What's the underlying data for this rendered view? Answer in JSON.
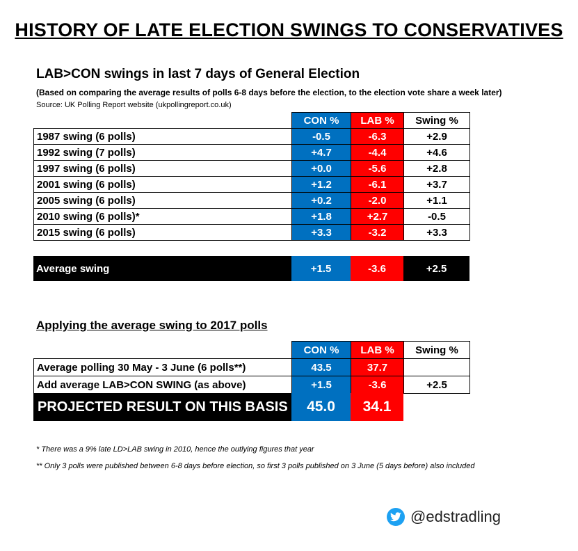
{
  "title": "HISTORY OF LATE ELECTION SWINGS TO CONSERVATIVES",
  "section1": {
    "heading": "LAB>CON swings in last 7 days of General Election",
    "note": "(Based on comparing the average results of polls 6-8 days before the election, to the election vote share a week later)",
    "source": "Source: UK Polling Report website (ukpollingreport.co.uk)",
    "columns": [
      "CON %",
      "LAB %",
      "Swing %"
    ],
    "rows": [
      {
        "label": "1987 swing (6 polls)",
        "con": "-0.5",
        "lab": "-6.3",
        "swing": "+2.9"
      },
      {
        "label": "1992 swing (7 polls)",
        "con": "+4.7",
        "lab": "-4.4",
        "swing": "+4.6"
      },
      {
        "label": "1997 swing (6 polls)",
        "con": "+0.0",
        "lab": "-5.6",
        "swing": "+2.8"
      },
      {
        "label": "2001 swing (6 polls)",
        "con": "+1.2",
        "lab": "-6.1",
        "swing": "+3.7"
      },
      {
        "label": "2005 swing (6 polls)",
        "con": "+0.2",
        "lab": "-2.0",
        "swing": "+1.1"
      },
      {
        "label": "2010 swing (6 polls)*",
        "con": "+1.8",
        "lab": "+2.7",
        "swing": "-0.5"
      },
      {
        "label": "2015 swing (6 polls)",
        "con": "+3.3",
        "lab": "-3.2",
        "swing": "+3.3"
      }
    ],
    "average": {
      "label": "Average swing",
      "con": "+1.5",
      "lab": "-3.6",
      "swing": "+2.5"
    }
  },
  "section2": {
    "heading": "Applying the average swing to 2017 polls",
    "columns": [
      "CON %",
      "LAB %",
      "Swing %"
    ],
    "rows": [
      {
        "label": "Average polling 30 May - 3 June (6 polls**)",
        "con": "43.5",
        "lab": "37.7",
        "swing": ""
      },
      {
        "label": "Add average LAB>CON SWING (as above)",
        "con": "+1.5",
        "lab": "-3.6",
        "swing": "+2.5"
      }
    ],
    "projected": {
      "label": "PROJECTED RESULT ON THIS BASIS",
      "con": "45.0",
      "lab": "34.1"
    }
  },
  "footnotes": [
    "* There was a 9% late LD>LAB swing in 2010, hence the outlying figures that year",
    "** Only 3 polls were published between 6-8 days before election, so first 3 polls published on 3 June (5 days before) also included"
  ],
  "handle": "@edstradling",
  "icons": {
    "social": "twitter-bird-icon"
  },
  "colors": {
    "con": "#0070c0",
    "lab": "#ff0000",
    "black": "#000000",
    "twitter": "#1da1f2"
  }
}
